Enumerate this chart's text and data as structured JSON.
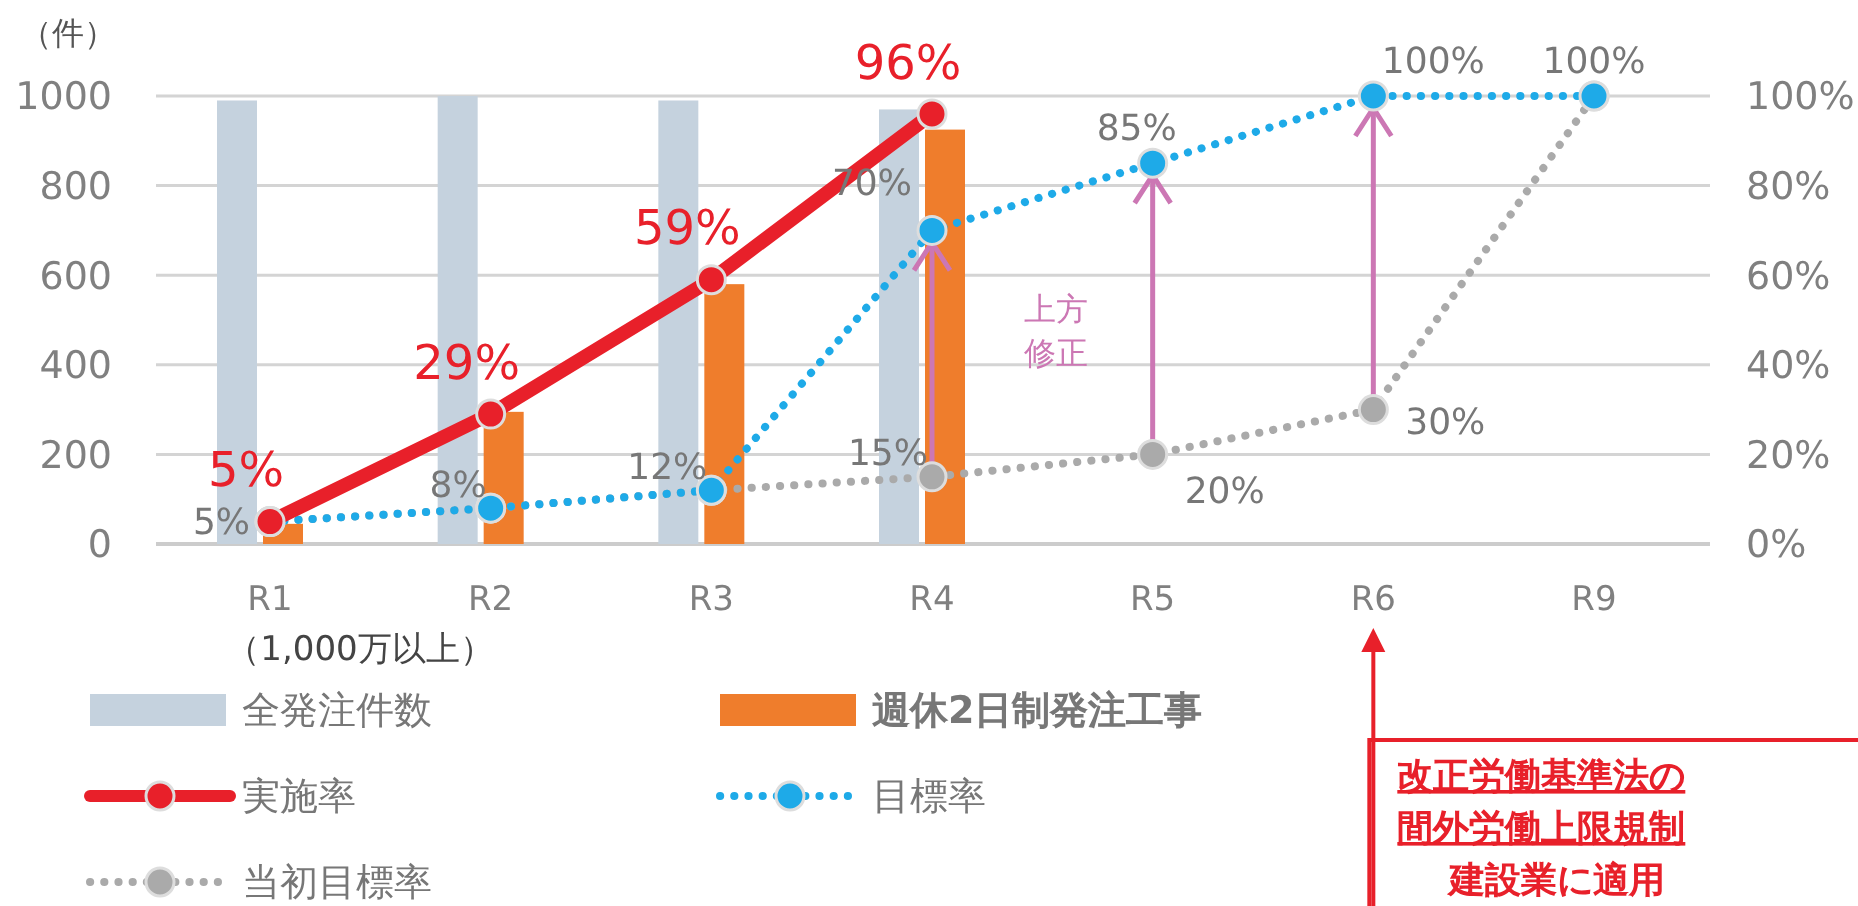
{
  "chart_data": {
    "type": "bar",
    "ylabel": "（件）",
    "categories": [
      "R1",
      "R2",
      "R3",
      "R4",
      "R5",
      "R6",
      "R9"
    ],
    "series": [
      {
        "name": "全発注件数",
        "color": "#c5d2de",
        "values": [
          990,
          1000,
          990,
          970,
          null,
          null,
          null
        ]
      },
      {
        "name": "週休2日制発注工事",
        "color": "#ef7d2c",
        "values": [
          45,
          295,
          580,
          925,
          null,
          null,
          null
        ]
      },
      {
        "name": "実施率",
        "type": "line",
        "axis": "y2",
        "color": "#e8202a",
        "line_style": "solid",
        "values": [
          5,
          29,
          59,
          96,
          null,
          null,
          null
        ],
        "value_labels": [
          "5%",
          "29%",
          "59%",
          "96%",
          null,
          null,
          null
        ]
      },
      {
        "name": "目標率",
        "type": "line",
        "axis": "y2",
        "color": "#1eaae8",
        "line_style": "dotted",
        "values": [
          5,
          8,
          12,
          70,
          85,
          100,
          100
        ],
        "value_labels": [
          null,
          null,
          null,
          "70%",
          "85%",
          "100%",
          null
        ]
      },
      {
        "name": "当初目標率",
        "type": "line",
        "axis": "y2",
        "color": "#aaaaaa",
        "line_style": "dotted",
        "values": [
          5,
          8,
          12,
          15,
          20,
          30,
          100
        ],
        "value_labels": [
          "5%",
          "8%",
          "12%",
          "15%",
          "20%",
          "30%",
          "100%"
        ]
      }
    ],
    "ylim": [
      0,
      1000
    ],
    "yticks": [
      0,
      200,
      400,
      600,
      800,
      1000
    ],
    "y2lim": [
      0,
      100
    ],
    "y2ticks": [
      {
        "value": 0,
        "label": "0%"
      },
      {
        "value": 20,
        "label": "20%"
      },
      {
        "value": 40,
        "label": "40%"
      },
      {
        "value": 60,
        "label": "60%"
      },
      {
        "value": 80,
        "label": "80%"
      },
      {
        "value": 100,
        "label": "100%"
      }
    ],
    "grid": "y",
    "marker": "circle",
    "legend": "bottom left",
    "annotations": [
      "（1,000万以上）",
      "上方修正",
      "改正労働基準法の間外労働上限規制建設業に適用"
    ]
  }
}
